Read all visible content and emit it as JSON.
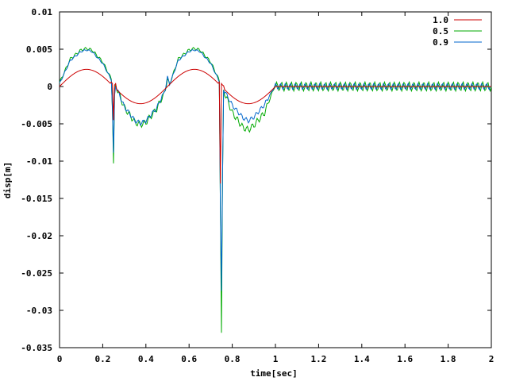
{
  "chart_data": {
    "type": "line",
    "title": "",
    "xlabel": "time[sec]",
    "ylabel": "disp[m]",
    "xlim": [
      0,
      2
    ],
    "ylim": [
      -0.035,
      0.01
    ],
    "xticks": [
      0,
      0.2,
      0.4,
      0.6,
      0.8,
      1,
      1.2,
      1.4,
      1.6,
      1.8,
      2
    ],
    "xtick_labels": [
      "0",
      "0.2",
      "0.4",
      "0.6",
      "0.8",
      "1",
      "1.2",
      "1.4",
      "1.6",
      "1.8",
      "2"
    ],
    "yticks": [
      0.01,
      0.005,
      0,
      -0.005,
      -0.01,
      -0.015,
      -0.02,
      -0.025,
      -0.03,
      -0.035
    ],
    "ytick_labels": [
      "0.01",
      "0.005",
      "0",
      "-0.005",
      "-0.01",
      "-0.015",
      "-0.02",
      "-0.025",
      "-0.03",
      "-0.035"
    ],
    "grid": false,
    "legend_position": "top-right",
    "series": [
      {
        "name": "1.0",
        "color": "#cc0000",
        "x": [
          0,
          0.05,
          0.1,
          0.125,
          0.15,
          0.2,
          0.24,
          0.245,
          0.25,
          0.255,
          0.26,
          0.3,
          0.35,
          0.375,
          0.4,
          0.45,
          0.5,
          0.55,
          0.6,
          0.625,
          0.65,
          0.7,
          0.74,
          0.745,
          0.75,
          0.755,
          0.76,
          0.8,
          0.85,
          0.875,
          0.9,
          0.95,
          1.0,
          1.2,
          1.4,
          1.6,
          1.8,
          2.0
        ],
        "y": [
          0,
          0.00164,
          0.00226,
          0.0023,
          0.00222,
          0.0015,
          0.0006,
          0.0004,
          -0.0045,
          0.0002,
          0.0004,
          -0.0012,
          -0.00218,
          -0.0023,
          -0.00222,
          -0.0014,
          0,
          0.00164,
          0.00226,
          0.0023,
          0.00222,
          0.0015,
          0.0006,
          -0.013,
          0.0004,
          0.0002,
          0.0001,
          -0.0012,
          -0.00218,
          -0.0023,
          -0.00222,
          -0.0014,
          0,
          0,
          0,
          0,
          0,
          0
        ]
      },
      {
        "name": "0.5",
        "color": "#00aa00",
        "x": [
          0,
          0.05,
          0.1,
          0.125,
          0.15,
          0.2,
          0.24,
          0.245,
          0.25,
          0.255,
          0.26,
          0.3,
          0.35,
          0.375,
          0.4,
          0.45,
          0.49,
          0.5,
          0.51,
          0.55,
          0.6,
          0.625,
          0.65,
          0.7,
          0.74,
          0.745,
          0.75,
          0.755,
          0.76,
          0.8,
          0.85,
          0.875,
          0.9,
          0.95,
          1.0,
          1.2,
          1.4,
          1.6,
          1.8,
          2.0
        ],
        "y": [
          0.0005,
          0.0037,
          0.0049,
          0.0051,
          0.0049,
          0.0033,
          0.001,
          -0.003,
          -0.0103,
          -0.001,
          0.0002,
          -0.0028,
          -0.0048,
          -0.0051,
          -0.0048,
          -0.003,
          -0.0005,
          0.001,
          0.0003,
          0.0037,
          0.0049,
          0.0051,
          0.0049,
          0.0033,
          0.0008,
          -0.016,
          -0.033,
          -0.012,
          -0.0005,
          -0.0035,
          -0.0055,
          -0.0058,
          -0.0052,
          -0.0035,
          0.0003,
          0,
          0,
          0,
          0,
          0
        ]
      },
      {
        "name": "0.9",
        "color": "#0066cc",
        "x": [
          0,
          0.05,
          0.1,
          0.125,
          0.15,
          0.2,
          0.24,
          0.245,
          0.25,
          0.255,
          0.26,
          0.3,
          0.35,
          0.375,
          0.4,
          0.45,
          0.49,
          0.5,
          0.51,
          0.55,
          0.6,
          0.625,
          0.65,
          0.7,
          0.74,
          0.745,
          0.75,
          0.755,
          0.76,
          0.8,
          0.85,
          0.875,
          0.9,
          0.95,
          1.0,
          1.2,
          1.4,
          1.6,
          1.8,
          2.0
        ],
        "y": [
          0.0004,
          0.0035,
          0.0047,
          0.0049,
          0.0047,
          0.0031,
          0.0009,
          -0.003,
          -0.009,
          -0.0012,
          0.0001,
          -0.0027,
          -0.0046,
          -0.0049,
          -0.0046,
          -0.0029,
          -0.0004,
          0.0013,
          0.0003,
          0.0035,
          0.0047,
          0.0049,
          0.0047,
          0.0031,
          0.0007,
          -0.016,
          -0.0275,
          -0.012,
          -0.0004,
          -0.0025,
          -0.0042,
          -0.0046,
          -0.0041,
          -0.0024,
          0.0002,
          0,
          0,
          0,
          0,
          0
        ]
      }
    ]
  }
}
